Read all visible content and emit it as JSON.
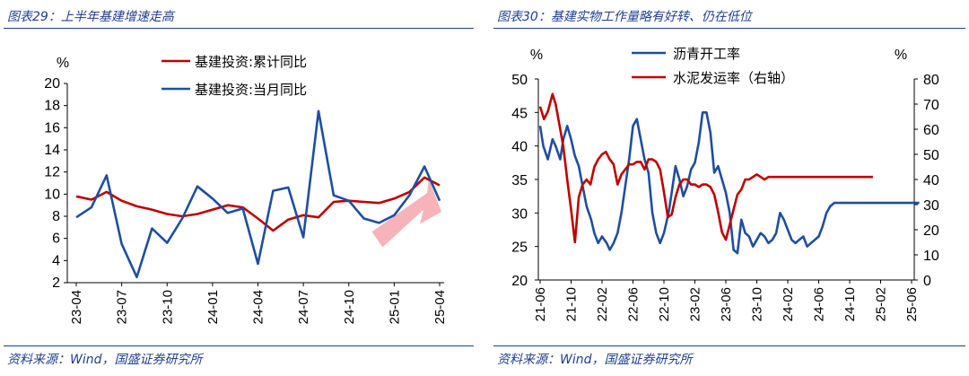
{
  "left": {
    "title": "图表29：上半年基建增速走高",
    "source": "资料来源：Wind，国盛证券研究所",
    "chart_data": {
      "type": "line",
      "ylabel": "%",
      "ylim": [
        2,
        20
      ],
      "yticks": [
        "20",
        "18",
        "16",
        "14",
        "12",
        "10",
        "8",
        "6",
        "4",
        "2"
      ],
      "xtick_labels": [
        "23-04",
        "23-07",
        "23-10",
        "24-01",
        "24-04",
        "24-07",
        "24-10",
        "25-01",
        "25-04"
      ],
      "x": [
        "23-04",
        "23-05",
        "23-06",
        "23-07",
        "23-08",
        "23-09",
        "23-10",
        "23-11",
        "23-12",
        "24-01",
        "24-02",
        "24-03",
        "24-04",
        "24-05",
        "24-06",
        "24-07",
        "24-08",
        "24-09",
        "24-10",
        "24-11",
        "24-12",
        "25-01",
        "25-02",
        "25-03",
        "25-04"
      ],
      "series": [
        {
          "name": "基建投资:累计同比",
          "color": "#c00000",
          "values": [
            9.8,
            9.5,
            10.2,
            9.4,
            8.9,
            8.6,
            8.2,
            8.0,
            8.2,
            8.6,
            9.0,
            8.8,
            7.8,
            6.7,
            7.7,
            8.1,
            7.9,
            9.3,
            9.4,
            9.3,
            9.2,
            9.6,
            10.2,
            11.5,
            10.8
          ]
        },
        {
          "name": "基建投资:当月同比",
          "color": "#1f4e9f",
          "values": [
            7.9,
            8.8,
            11.7,
            5.5,
            2.5,
            6.9,
            5.6,
            7.8,
            10.7,
            9.6,
            8.3,
            8.7,
            3.7,
            10.3,
            10.6,
            6.1,
            17.5,
            9.9,
            9.4,
            7.8,
            7.4,
            8.1,
            9.9,
            12.5,
            9.4
          ]
        }
      ]
    }
  },
  "right": {
    "title": "图表30：基建实物工作量略有好转、仍在低位",
    "source": "资料来源：Wind，国盛证券研究所",
    "chart_data": {
      "type": "line",
      "ylabel_left": "%",
      "ylabel_right": "%",
      "ylim_left": [
        20,
        50
      ],
      "ylim_right": [
        0,
        80
      ],
      "yticks_left": [
        "50",
        "45",
        "40",
        "35",
        "30",
        "25",
        "20"
      ],
      "yticks_right": [
        "80",
        "70",
        "60",
        "50",
        "40",
        "30",
        "20",
        "10",
        "0"
      ],
      "xtick_labels": [
        "21-06",
        "21-10",
        "22-02",
        "22-06",
        "22-10",
        "23-02",
        "23-06",
        "23-10",
        "24-02",
        "24-06",
        "24-10",
        "25-02",
        "25-06"
      ],
      "series": [
        {
          "name": "沥青开工率",
          "color": "#1f4e9f",
          "axis": "left",
          "x": [
            0,
            0.4,
            1,
            1.6,
            2,
            2.6,
            3,
            3.5,
            4,
            4.5,
            5,
            5.5,
            6,
            6.6,
            7,
            7.5,
            8,
            8.6,
            9,
            9.5,
            10,
            10.5,
            11,
            11.5,
            12,
            12.5,
            13,
            13.5,
            14,
            14.5,
            15,
            15.5,
            16,
            16.6,
            17,
            17.5,
            18,
            18.5,
            19,
            19.5,
            20,
            20.5,
            21,
            21.5,
            22,
            22.5,
            23,
            23.5,
            24,
            24.5,
            25,
            25.5,
            26,
            26.5,
            27,
            27.5,
            28,
            28.5,
            29,
            29.5,
            30,
            30.5,
            31,
            31.5,
            32,
            32.5,
            33,
            33.5,
            34,
            34.5,
            35,
            35.5,
            36,
            36.5,
            37,
            37.5,
            38,
            38.5,
            39,
            39.5,
            40,
            40.5,
            41,
            41.5,
            42,
            42.5,
            43,
            43.5,
            44,
            44.5,
            45,
            45.5,
            46,
            46.5,
            47,
            47.5,
            48,
            48.5,
            49
          ],
          "values": [
            43,
            40,
            38,
            41,
            40,
            38,
            41,
            43,
            41,
            38.5,
            37,
            34,
            31,
            29,
            27,
            25.5,
            26.5,
            25.5,
            24.5,
            25.5,
            27,
            30,
            34,
            38,
            43,
            44,
            41,
            38,
            36,
            30,
            27,
            25.5,
            27,
            30,
            33,
            37,
            35,
            32.5,
            34,
            36.5,
            37.5,
            40.5,
            45,
            45,
            42,
            36,
            37,
            35,
            33,
            30,
            24.5,
            24,
            29,
            27,
            26.5,
            25,
            26,
            27,
            26.5,
            25.5,
            26,
            27,
            30,
            29,
            27.5,
            26,
            25.5,
            26,
            26.5,
            25,
            25.5,
            26,
            26.5,
            28,
            30,
            31,
            31.5,
            31.5,
            31.5,
            31.5,
            31.5,
            31.5,
            31.5,
            31.5,
            31.5,
            31.5,
            31.5,
            31.5,
            31.5,
            31.5,
            31.5,
            31.5,
            31.5,
            31.5,
            31.5,
            31.5,
            31.5,
            31.5,
            31.5
          ]
        },
        {
          "name": "水泥发运率（右轴）",
          "color": "#c00000",
          "axis": "right",
          "x": [
            0,
            0.5,
            1,
            1.6,
            2,
            2.6,
            3,
            3.5,
            4,
            4.5,
            5,
            5.5,
            6,
            6.5,
            7,
            7.5,
            8,
            8.5,
            9,
            9.5,
            10,
            10.5,
            11,
            11.5,
            12,
            12.5,
            13,
            13.5,
            14,
            14.5,
            15,
            15.5,
            16,
            16.5,
            17,
            17.5,
            18,
            18.5,
            19,
            19.5,
            20,
            20.5,
            21,
            21.5,
            22,
            22.5,
            23,
            23.5,
            24,
            24.5,
            25,
            25.5,
            26,
            26.5,
            27,
            27.5,
            28,
            28.5,
            29,
            29.5,
            30,
            30.5,
            31,
            31.5,
            32,
            32.5,
            33,
            33.5,
            34,
            34.5,
            35,
            35.5,
            36,
            36.5,
            37,
            37.5,
            38,
            38.5,
            39,
            39.5,
            40,
            40.5,
            41,
            41.5,
            42,
            42.5,
            43
          ],
          "values": [
            69,
            64,
            67,
            74,
            70,
            60,
            53,
            40,
            28,
            15,
            33,
            38,
            40,
            38,
            45,
            48,
            50,
            51,
            48,
            46,
            38,
            42,
            44,
            46,
            46,
            47,
            47,
            44,
            48,
            48,
            47,
            44,
            35,
            25,
            26,
            33,
            38,
            40,
            40,
            38,
            38,
            37,
            38,
            38,
            37,
            34,
            27,
            19,
            16,
            22,
            28,
            34,
            36,
            40,
            40,
            41,
            42,
            41,
            40,
            41,
            41,
            41,
            41,
            41,
            41,
            41,
            41,
            41,
            41,
            41,
            41,
            41,
            41,
            41,
            41,
            41,
            41,
            41,
            41,
            41,
            41,
            41,
            41,
            41,
            41,
            41,
            41
          ]
        }
      ]
    }
  }
}
